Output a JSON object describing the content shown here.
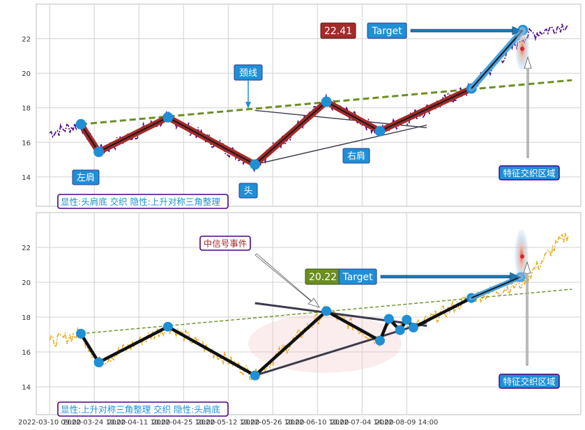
{
  "chart_data": [
    {
      "type": "line",
      "panel": "top",
      "ylim": [
        12.3,
        24.0
      ],
      "yticks": [
        14,
        16,
        18,
        20,
        22
      ],
      "grid": true,
      "pattern_points": [
        {
          "name": "p1",
          "x": 0.7,
          "y": 17.05
        },
        {
          "name": "左肩",
          "x": 1.1,
          "y": 15.45
        },
        {
          "name": "p3",
          "x": 2.65,
          "y": 17.45
        },
        {
          "name": "头",
          "x": 4.6,
          "y": 14.72
        },
        {
          "name": "p5",
          "x": 6.2,
          "y": 18.35
        },
        {
          "name": "右肩",
          "x": 7.4,
          "y": 16.65
        },
        {
          "name": "p7",
          "x": 9.45,
          "y": 19.12
        },
        {
          "name": "target",
          "x": 10.6,
          "y": 22.5
        }
      ],
      "trend_line": {
        "from": {
          "x": 0.7,
          "y": 17.05
        },
        "to": {
          "x": 11.7,
          "y": 19.6
        }
      },
      "triangle_upper": {
        "from": {
          "x": 4.6,
          "y": 17.85
        },
        "to": {
          "x": 8.45,
          "y": 16.85
        }
      },
      "triangle_lower": {
        "from": {
          "x": 4.6,
          "y": 14.72
        },
        "to": {
          "x": 8.45,
          "y": 17.0
        }
      },
      "price_series_color": "#4b0082",
      "annotations": {
        "neckline": "颈线",
        "left_shoulder": "左肩",
        "head": "头",
        "right_shoulder": "右肩",
        "price_badge": "22.41",
        "target": "Target",
        "feature_zone": "特征交织区域",
        "summary": "显性:头肩底 交织 隐性:上升对称三角整理"
      }
    },
    {
      "type": "line",
      "panel": "bottom",
      "ylim": [
        12.4,
        24.0
      ],
      "yticks": [
        14,
        16,
        18,
        20,
        22
      ],
      "grid": true,
      "pattern_points": [
        {
          "x": 0.7,
          "y": 17.05
        },
        {
          "x": 1.1,
          "y": 15.4
        },
        {
          "x": 2.65,
          "y": 17.45
        },
        {
          "x": 4.6,
          "y": 14.65
        },
        {
          "x": 6.2,
          "y": 18.35
        },
        {
          "x": 7.4,
          "y": 16.65
        },
        {
          "x": 7.6,
          "y": 17.9
        },
        {
          "x": 7.85,
          "y": 17.25
        },
        {
          "x": 8.0,
          "y": 17.85
        },
        {
          "x": 8.15,
          "y": 17.4
        },
        {
          "x": 9.45,
          "y": 19.1
        },
        {
          "x": 10.55,
          "y": 20.3
        }
      ],
      "trend_line": {
        "from": {
          "x": 0.7,
          "y": 17.05
        },
        "to": {
          "x": 11.7,
          "y": 19.6
        }
      },
      "triangle_upper": {
        "from": {
          "x": 4.6,
          "y": 18.8
        },
        "to": {
          "x": 8.45,
          "y": 17.5
        }
      },
      "triangle_lower": {
        "from": {
          "x": 4.6,
          "y": 14.65
        },
        "to": {
          "x": 8.45,
          "y": 17.7
        }
      },
      "price_series_color": "#e8a817",
      "annotations": {
        "signal_event": "中信号事件",
        "price_badge": "20.22",
        "target": "Target",
        "feature_zone": "特征交织区域",
        "summary": "显性:上升对称三角整理 交织 隐性:头肩底"
      }
    }
  ],
  "x_axis": {
    "xlim": [
      -0.3,
      11.9
    ],
    "ticks": [
      {
        "x": 0,
        "label": "2022-03-10 09:00"
      },
      {
        "x": 1,
        "label": "2022-03-24 10:00"
      },
      {
        "x": 2,
        "label": "2022-04-11 10:00"
      },
      {
        "x": 3,
        "label": "2022-04-25 10:00"
      },
      {
        "x": 4,
        "label": "2022-05-12 10:00"
      },
      {
        "x": 5,
        "label": "2022-05-26 10:00"
      },
      {
        "x": 6,
        "label": "2022-06-10 10:00"
      },
      {
        "x": 7,
        "label": "2022-07-04 14:00"
      },
      {
        "x": 8,
        "label": "2022-08-09 14:00"
      }
    ]
  },
  "colors": {
    "blue": "#1f8fd6",
    "red": "#a52a2a",
    "green": "#6b8e23",
    "purple": "#4b0082",
    "orange": "#e8a817",
    "arrow": "#1f77b4"
  }
}
